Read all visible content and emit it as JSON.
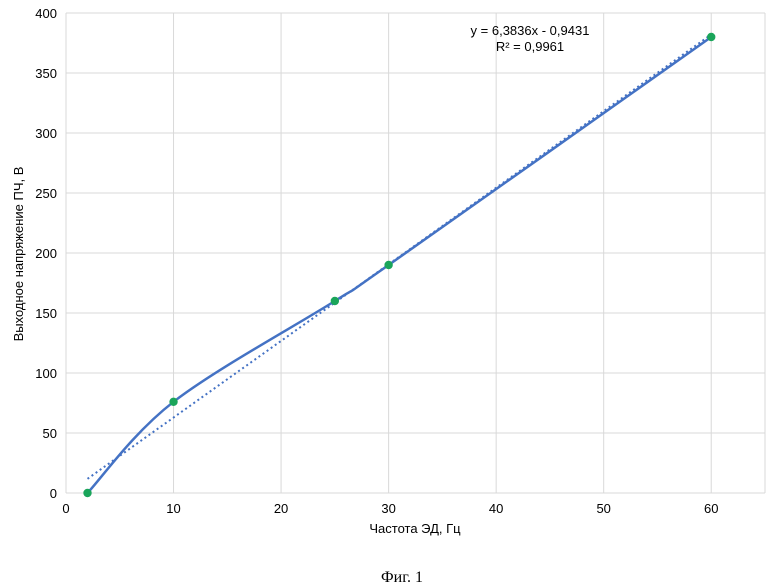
{
  "chart_data": {
    "type": "scatter",
    "xlabel": "Частота ЭД, Гц",
    "ylabel": "Выходное напряжение ПЧ, В",
    "xlim": [
      0,
      65
    ],
    "ylim": [
      0,
      400
    ],
    "x_ticks": [
      0,
      10,
      20,
      30,
      40,
      50,
      60
    ],
    "y_ticks": [
      0,
      50,
      100,
      150,
      200,
      250,
      300,
      350,
      400
    ],
    "grid": "vertical and horizontal",
    "series": [
      {
        "x": [
          2,
          10,
          25,
          30,
          60
        ],
        "y": [
          0,
          76,
          160,
          190,
          380
        ],
        "line_color": "#4472c4",
        "marker_color": "#1aa55a",
        "smooth": true
      }
    ],
    "trendline": {
      "slope": 6.3836,
      "intercept": -0.9431,
      "x_range": [
        2,
        60
      ],
      "style": "dotted",
      "color": "#4472c4",
      "equation": "y = 6,3836x - 0,9431",
      "r_squared": "R² = 0,9961"
    },
    "caption": "Фиг. 1"
  }
}
